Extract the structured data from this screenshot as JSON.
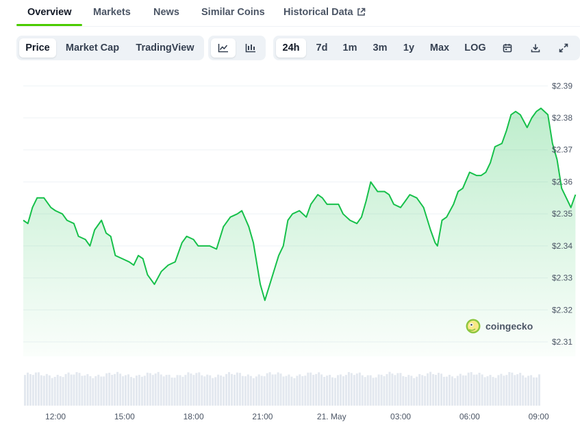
{
  "tabs": [
    {
      "label": "Overview",
      "active": true
    },
    {
      "label": "Markets"
    },
    {
      "label": "News"
    },
    {
      "label": "Similar Coins"
    },
    {
      "label": "Historical Data",
      "external": true
    }
  ],
  "metric_toggle": [
    "Price",
    "Market Cap",
    "TradingView"
  ],
  "chart_style_icons": [
    "line-chart-icon",
    "candlestick-chart-icon"
  ],
  "range_buttons": [
    "24h",
    "7d",
    "1m",
    "3m",
    "1y",
    "Max",
    "LOG"
  ],
  "tool_icons": [
    "calendar-icon",
    "download-icon",
    "expand-icon"
  ],
  "watermark": "coingecko",
  "colors": {
    "line": "#16c04a",
    "accent": "#4bcc00",
    "volume": "#e3e8ef",
    "grid": "#eef2f6"
  },
  "chart_data": {
    "type": "area",
    "title": "",
    "xlabel": "",
    "ylabel": "",
    "currency_prefix": "$",
    "y_ticks": [
      2.31,
      2.32,
      2.33,
      2.34,
      2.35,
      2.36,
      2.37,
      2.38,
      2.39
    ],
    "y_tick_labels": [
      "$2.31",
      "$2.32",
      "$2.33",
      "$2.34",
      "$2.35",
      "$2.36",
      "$2.37",
      "$2.38",
      "$2.39"
    ],
    "ylim": [
      2.3055,
      2.3905
    ],
    "xlim": [
      10.6,
      33.1
    ],
    "x_ticks": [
      12,
      15,
      18,
      21,
      24,
      27,
      30,
      33
    ],
    "x_tick_labels": [
      "12:00",
      "15:00",
      "18:00",
      "21:00",
      "21. May",
      "03:00",
      "06:00",
      "09:00"
    ],
    "x_unit": "hour (20 May 00:00 = 0)",
    "grid": true,
    "series": [
      {
        "values": [
          [
            10.6,
            2.348
          ],
          [
            10.8,
            2.347
          ],
          [
            11.0,
            2.352
          ],
          [
            11.2,
            2.355
          ],
          [
            11.5,
            2.355
          ],
          [
            11.8,
            2.352
          ],
          [
            12.0,
            2.351
          ],
          [
            12.3,
            2.35
          ],
          [
            12.5,
            2.348
          ],
          [
            12.8,
            2.347
          ],
          [
            13.0,
            2.343
          ],
          [
            13.3,
            2.342
          ],
          [
            13.5,
            2.34
          ],
          [
            13.7,
            2.345
          ],
          [
            14.0,
            2.348
          ],
          [
            14.2,
            2.344
          ],
          [
            14.4,
            2.343
          ],
          [
            14.6,
            2.337
          ],
          [
            14.9,
            2.336
          ],
          [
            15.2,
            2.335
          ],
          [
            15.4,
            2.334
          ],
          [
            15.6,
            2.337
          ],
          [
            15.8,
            2.336
          ],
          [
            16.0,
            2.331
          ],
          [
            16.3,
            2.328
          ],
          [
            16.6,
            2.332
          ],
          [
            16.9,
            2.334
          ],
          [
            17.2,
            2.335
          ],
          [
            17.5,
            2.341
          ],
          [
            17.7,
            2.343
          ],
          [
            18.0,
            2.342
          ],
          [
            18.2,
            2.34
          ],
          [
            18.4,
            2.34
          ],
          [
            18.7,
            2.34
          ],
          [
            19.0,
            2.339
          ],
          [
            19.3,
            2.346
          ],
          [
            19.6,
            2.349
          ],
          [
            19.9,
            2.35
          ],
          [
            20.1,
            2.351
          ],
          [
            20.4,
            2.346
          ],
          [
            20.6,
            2.341
          ],
          [
            20.9,
            2.328
          ],
          [
            21.1,
            2.323
          ],
          [
            21.4,
            2.33
          ],
          [
            21.7,
            2.337
          ],
          [
            21.9,
            2.34
          ],
          [
            22.1,
            2.348
          ],
          [
            22.3,
            2.35
          ],
          [
            22.6,
            2.351
          ],
          [
            22.9,
            2.349
          ],
          [
            23.1,
            2.353
          ],
          [
            23.4,
            2.356
          ],
          [
            23.6,
            2.355
          ],
          [
            23.8,
            2.353
          ],
          [
            24.1,
            2.353
          ],
          [
            24.3,
            2.353
          ],
          [
            24.5,
            2.35
          ],
          [
            24.8,
            2.348
          ],
          [
            25.1,
            2.347
          ],
          [
            25.3,
            2.349
          ],
          [
            25.5,
            2.354
          ],
          [
            25.7,
            2.36
          ],
          [
            26.0,
            2.357
          ],
          [
            26.3,
            2.357
          ],
          [
            26.5,
            2.356
          ],
          [
            26.7,
            2.353
          ],
          [
            27.0,
            2.352
          ],
          [
            27.2,
            2.354
          ],
          [
            27.4,
            2.356
          ],
          [
            27.7,
            2.355
          ],
          [
            28.0,
            2.352
          ],
          [
            28.3,
            2.345
          ],
          [
            28.5,
            2.341
          ],
          [
            28.6,
            2.34
          ],
          [
            28.8,
            2.348
          ],
          [
            29.0,
            2.349
          ],
          [
            29.3,
            2.353
          ],
          [
            29.5,
            2.357
          ],
          [
            29.7,
            2.358
          ],
          [
            30.0,
            2.363
          ],
          [
            30.3,
            2.362
          ],
          [
            30.5,
            2.362
          ],
          [
            30.7,
            2.363
          ],
          [
            30.9,
            2.366
          ],
          [
            31.1,
            2.371
          ],
          [
            31.4,
            2.372
          ],
          [
            31.6,
            2.376
          ],
          [
            31.8,
            2.381
          ],
          [
            32.0,
            2.382
          ],
          [
            32.2,
            2.381
          ],
          [
            32.5,
            2.377
          ],
          [
            32.7,
            2.38
          ],
          [
            32.9,
            2.382
          ],
          [
            33.1,
            2.383
          ],
          [
            33.4,
            2.381
          ],
          [
            33.6,
            2.372
          ],
          [
            33.8,
            2.367
          ],
          [
            34.0,
            2.358
          ],
          [
            34.2,
            2.355
          ],
          [
            34.4,
            2.352
          ],
          [
            34.6,
            2.356
          ]
        ]
      }
    ]
  }
}
